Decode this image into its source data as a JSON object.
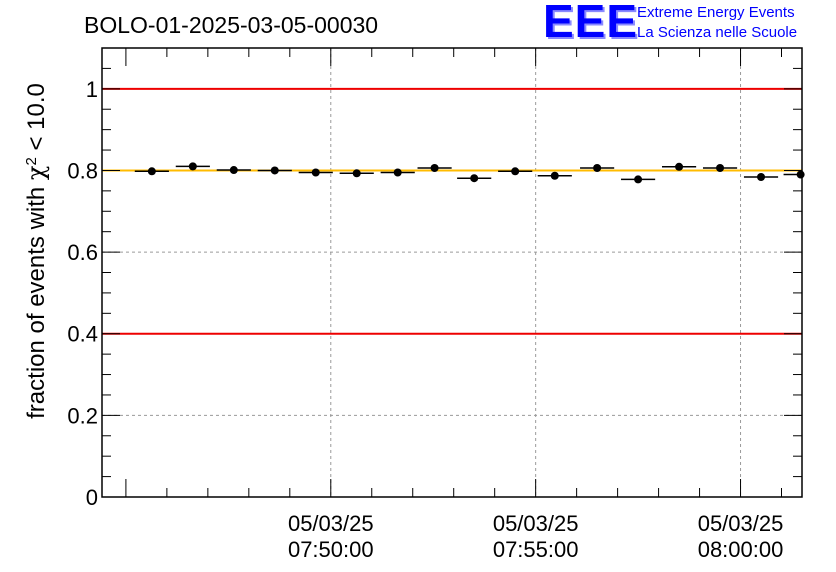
{
  "chart_data": {
    "type": "scatter",
    "title": "BOLO-01-2025-03-05-00030",
    "ylabel_prefix": "fraction of events with ",
    "ylabel_symbol": "χ",
    "ylabel_sup": "2",
    "ylabel_suffix": " < 10.0",
    "xlabel": "",
    "ylim": [
      0,
      1.1
    ],
    "yticks": [
      {
        "value": 0,
        "label": "0"
      },
      {
        "value": 0.2,
        "label": "0.2"
      },
      {
        "value": 0.4,
        "label": "0.4"
      },
      {
        "value": 0.6,
        "label": "0.6"
      },
      {
        "value": 0.8,
        "label": "0.8"
      },
      {
        "value": 1.0,
        "label": "1"
      }
    ],
    "xlim_seconds": [
      -335,
      690
    ],
    "xticks": [
      {
        "t": 0,
        "date": "05/03/25",
        "time": "07:50:00"
      },
      {
        "t": 300,
        "date": "05/03/25",
        "time": "07:55:00"
      },
      {
        "t": 600,
        "date": "05/03/25",
        "time": "08:00:00"
      }
    ],
    "grid": true,
    "reference_lines": [
      {
        "value": 1.0,
        "color": "#ee0000"
      },
      {
        "value": 0.4,
        "color": "#ee0000"
      },
      {
        "value": 0.8,
        "color": "#ffbb00"
      }
    ],
    "points": [
      {
        "t": -262,
        "y": 0.798
      },
      {
        "t": -202,
        "y": 0.81
      },
      {
        "t": -142,
        "y": 0.801
      },
      {
        "t": -82,
        "y": 0.8
      },
      {
        "t": -22,
        "y": 0.795
      },
      {
        "t": 38,
        "y": 0.793
      },
      {
        "t": 98,
        "y": 0.795
      },
      {
        "t": 152,
        "y": 0.806
      },
      {
        "t": 210,
        "y": 0.781
      },
      {
        "t": 270,
        "y": 0.798
      },
      {
        "t": 328,
        "y": 0.787
      },
      {
        "t": 390,
        "y": 0.806
      },
      {
        "t": 450,
        "y": 0.778
      },
      {
        "t": 510,
        "y": 0.809
      },
      {
        "t": 570,
        "y": 0.806
      },
      {
        "t": 630,
        "y": 0.784
      },
      {
        "t": 688,
        "y": 0.79
      }
    ],
    "x_error_half_seconds": 25,
    "point_color": "#000000",
    "axis_color": "#000000",
    "grid_color": "#9a9a9a"
  },
  "logo": {
    "text": "EEE",
    "line1": "Extreme Energy Events",
    "line2": "La Scienza nelle Scuole",
    "color": "#0000ff"
  }
}
